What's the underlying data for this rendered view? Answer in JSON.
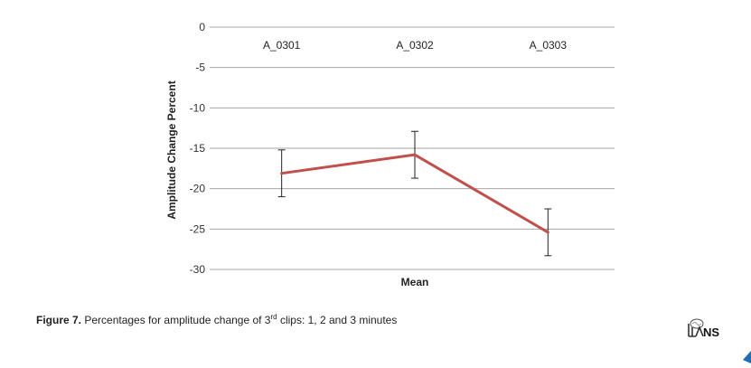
{
  "chart_data": {
    "type": "line",
    "categories": [
      "A_0301",
      "A_0302",
      "A_0303"
    ],
    "values": [
      -18.1,
      -15.8,
      -25.4
    ],
    "error_bars": [
      2.9,
      2.9,
      2.9
    ],
    "xlabel": "Mean",
    "ylabel": "Amplitude Change Percent",
    "ylim": [
      -30,
      0
    ],
    "yticks": [
      0,
      -5,
      -10,
      -15,
      -20,
      -25,
      -30
    ],
    "ytick_labels": [
      "0",
      "-5",
      "-10",
      "-15",
      "-20",
      "-25",
      "-30"
    ],
    "grid": true,
    "category_labels_position": "top",
    "line_color": "#c0504d",
    "grid_color": "#a6a6a6"
  },
  "caption": {
    "label": "Figure 7.",
    "text_before": " Percentages for amplitude change of 3",
    "superscript": "rd",
    "text_after": " clips: 1, 2 and 3 minutes"
  },
  "logo": {
    "text": "NS",
    "icon": "brain-logo-icon"
  }
}
